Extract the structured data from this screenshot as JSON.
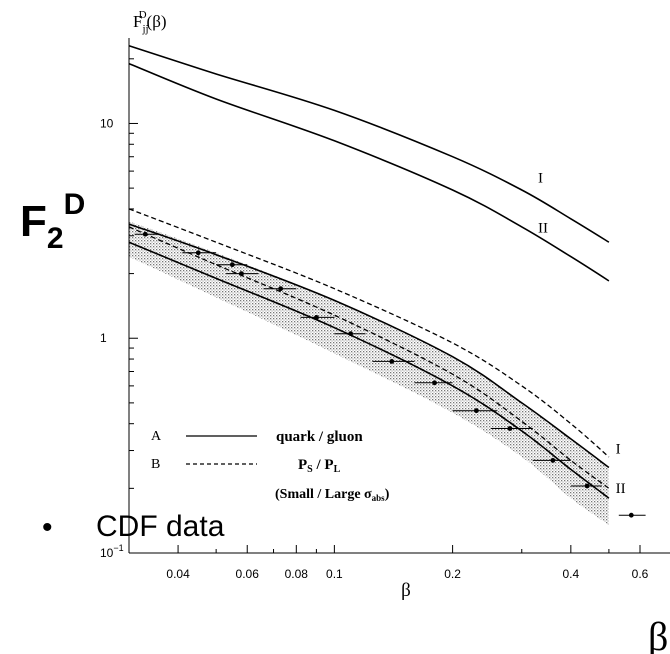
{
  "overlay": {
    "f2d_base": "F",
    "f2d_sub": "2",
    "f2d_sup": "D",
    "beta_big": "β",
    "cdf_bullet": "•",
    "cdf_label": "CDF data"
  },
  "chart_data": {
    "type": "line",
    "y_axis_label": {
      "base": "F",
      "sub": "jj",
      "sup": "D",
      "arg": "(β)"
    },
    "xlabel": "β",
    "x_scale": "log",
    "y_scale": "log",
    "xlim": [
      0.03,
      0.62
    ],
    "ylim": [
      0.1,
      25
    ],
    "x_ticks": [
      {
        "value": 0.04,
        "label": "0.04"
      },
      {
        "value": 0.06,
        "label": "0.06"
      },
      {
        "value": 0.08,
        "label": "0.08"
      },
      {
        "value": 0.1,
        "label": "0.1"
      },
      {
        "value": 0.2,
        "label": "0.2"
      },
      {
        "value": 0.4,
        "label": "0.4"
      },
      {
        "value": 0.6,
        "label": "0.6"
      }
    ],
    "y_ticks": [
      {
        "value": 0.1,
        "base": "10",
        "exp": "−1"
      },
      {
        "value": 1,
        "base": "1",
        "exp": ""
      },
      {
        "value": 10,
        "base": "10",
        "exp": ""
      }
    ],
    "series": [
      {
        "name": "I",
        "style": "solid",
        "x": [
          0.03,
          0.05,
          0.1,
          0.2,
          0.3,
          0.4,
          0.5
        ],
        "y": [
          23,
          17,
          11.5,
          7,
          4.9,
          3.6,
          2.8
        ]
      },
      {
        "name": "II",
        "style": "solid",
        "x": [
          0.03,
          0.05,
          0.1,
          0.2,
          0.3,
          0.4,
          0.5
        ],
        "y": [
          19,
          13,
          8.3,
          4.9,
          3.3,
          2.4,
          1.85
        ]
      },
      {
        "name": "I",
        "style": "dashed",
        "x": [
          0.03,
          0.05,
          0.1,
          0.2,
          0.3,
          0.4,
          0.5
        ],
        "y": [
          4.0,
          2.8,
          1.7,
          0.95,
          0.6,
          0.4,
          0.28
        ]
      },
      {
        "name": "I",
        "style": "solid",
        "x": [
          0.03,
          0.05,
          0.1,
          0.2,
          0.3,
          0.4,
          0.5
        ],
        "y": [
          3.4,
          2.45,
          1.5,
          0.82,
          0.5,
          0.34,
          0.25
        ]
      },
      {
        "name": "II",
        "style": "dashed",
        "x": [
          0.03,
          0.05,
          0.1,
          0.2,
          0.3,
          0.4,
          0.5
        ],
        "y": [
          3.3,
          2.2,
          1.28,
          0.68,
          0.41,
          0.27,
          0.2
        ]
      },
      {
        "name": "II",
        "style": "solid",
        "x": [
          0.03,
          0.05,
          0.1,
          0.2,
          0.3,
          0.4,
          0.5
        ],
        "y": [
          2.8,
          1.9,
          1.12,
          0.6,
          0.37,
          0.245,
          0.18
        ]
      }
    ],
    "curve_labels": [
      {
        "text": "I",
        "x": 0.33,
        "y": 5.3
      },
      {
        "text": "II",
        "x": 0.33,
        "y": 3.1
      },
      {
        "text": "I",
        "x": 0.52,
        "y": 0.29
      },
      {
        "text": "II",
        "x": 0.52,
        "y": 0.19
      }
    ],
    "band": {
      "x": [
        0.03,
        0.05,
        0.1,
        0.2,
        0.3,
        0.4,
        0.5
      ],
      "y_upper": [
        3.5,
        2.5,
        1.5,
        0.82,
        0.5,
        0.34,
        0.25
      ],
      "y_lower": [
        2.4,
        1.55,
        0.85,
        0.45,
        0.28,
        0.18,
        0.135
      ]
    },
    "points": [
      {
        "x": 0.033,
        "y": 3.05,
        "xerr": [
          0.031,
          0.036
        ]
      },
      {
        "x": 0.045,
        "y": 2.5,
        "xerr": [
          0.041,
          0.05
        ]
      },
      {
        "x": 0.055,
        "y": 2.2,
        "xerr": [
          0.05,
          0.06
        ]
      },
      {
        "x": 0.058,
        "y": 2.0,
        "xerr": [
          0.053,
          0.064
        ]
      },
      {
        "x": 0.073,
        "y": 1.7,
        "xerr": [
          0.066,
          0.08
        ]
      },
      {
        "x": 0.09,
        "y": 1.25,
        "xerr": [
          0.082,
          0.1
        ]
      },
      {
        "x": 0.11,
        "y": 1.05,
        "xerr": [
          0.1,
          0.12
        ]
      },
      {
        "x": 0.14,
        "y": 0.78,
        "xerr": [
          0.125,
          0.16
        ]
      },
      {
        "x": 0.18,
        "y": 0.62,
        "xerr": [
          0.16,
          0.2
        ]
      },
      {
        "x": 0.23,
        "y": 0.46,
        "xerr": [
          0.2,
          0.26
        ]
      },
      {
        "x": 0.28,
        "y": 0.38,
        "xerr": [
          0.25,
          0.32
        ]
      },
      {
        "x": 0.36,
        "y": 0.27,
        "xerr": [
          0.32,
          0.4
        ]
      },
      {
        "x": 0.44,
        "y": 0.205,
        "xerr": [
          0.4,
          0.48
        ]
      },
      {
        "x": 0.57,
        "y": 0.15,
        "xerr": [
          0.53,
          0.62
        ]
      }
    ],
    "legend": {
      "entries": [
        {
          "key": "A",
          "style": "solid",
          "label": "quark / gluon"
        },
        {
          "key": "B",
          "style": "dashed",
          "label_base": "P",
          "label_sub1": "S",
          "label_mid": " / P",
          "label_sub2": "L"
        }
      ],
      "note_prefix": "(Small / Large σ",
      "note_sub": "abs",
      "note_suffix": ")",
      "placement": "bottom-left"
    }
  }
}
